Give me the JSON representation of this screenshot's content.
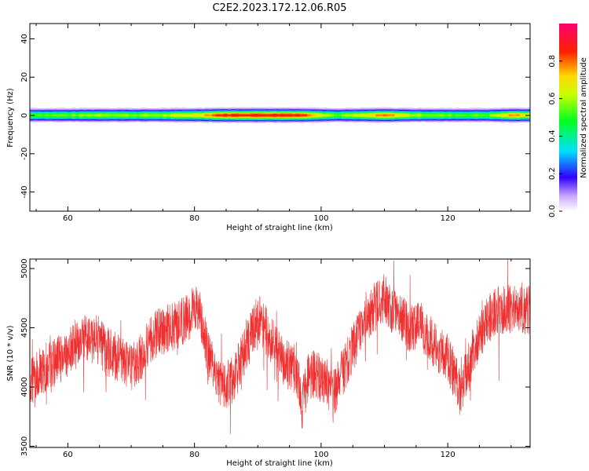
{
  "figure": {
    "title": "C2E2.2023.172.12.06.R05"
  },
  "chart_data": [
    {
      "type": "heatmap",
      "title": "",
      "xlabel": "Height of straight line (km)",
      "ylabel": "Frequency (Hz)",
      "xlim": [
        54,
        133
      ],
      "ylim": [
        -50,
        48
      ],
      "xticks": [
        60,
        80,
        100,
        120
      ],
      "yticks": [
        -40,
        -20,
        0,
        20,
        40
      ],
      "colorbar": {
        "label": "Normalized spectral amplitude",
        "range": [
          0,
          1
        ],
        "ticks": [
          0.0,
          0.2,
          0.4,
          0.6,
          0.8
        ],
        "colors": [
          "#ffffff",
          "#8a5cff",
          "#0000ff",
          "#00ffff",
          "#00ff00",
          "#ffff00",
          "#ff0000",
          "#ff0080"
        ]
      },
      "band": {
        "center_hz": 0,
        "half_width_hz": 3,
        "profile": [
          {
            "x": 54,
            "peak": 0.55
          },
          {
            "x": 60,
            "peak": 0.55
          },
          {
            "x": 65,
            "peak": 0.62
          },
          {
            "x": 70,
            "peak": 0.58
          },
          {
            "x": 75,
            "peak": 0.6
          },
          {
            "x": 80,
            "peak": 0.7
          },
          {
            "x": 84,
            "peak": 0.88
          },
          {
            "x": 90,
            "peak": 0.9
          },
          {
            "x": 96,
            "peak": 0.9
          },
          {
            "x": 99,
            "peak": 0.75
          },
          {
            "x": 102,
            "peak": 0.55
          },
          {
            "x": 106,
            "peak": 0.65
          },
          {
            "x": 110,
            "peak": 0.8
          },
          {
            "x": 114,
            "peak": 0.62
          },
          {
            "x": 120,
            "peak": 0.55
          },
          {
            "x": 126,
            "peak": 0.55
          },
          {
            "x": 130,
            "peak": 0.78
          },
          {
            "x": 133,
            "peak": 0.7
          }
        ]
      }
    },
    {
      "type": "line",
      "title": "",
      "xlabel": "Height of straight line (km)",
      "ylabel": "SNR (10 * v/v)",
      "xlim": [
        54,
        133
      ],
      "ylim": [
        3490,
        5080
      ],
      "xticks": [
        60,
        80,
        100,
        120
      ],
      "yticks": [
        3500,
        4000,
        4500,
        5000
      ],
      "line_color": "#f03030",
      "series": [
        {
          "x": [
            54,
            56,
            58,
            60,
            62,
            64,
            66,
            68,
            70,
            72,
            74,
            76,
            78,
            80,
            81,
            82,
            84,
            86,
            88,
            90,
            92,
            94,
            96,
            97,
            98,
            100,
            102,
            104,
            106,
            108,
            110,
            112,
            114,
            116,
            118,
            120,
            122,
            124,
            126,
            128,
            130,
            133
          ],
          "y": [
            4050,
            4150,
            4200,
            4300,
            4400,
            4450,
            4300,
            4250,
            4150,
            4300,
            4450,
            4500,
            4550,
            4650,
            4600,
            4300,
            4000,
            4050,
            4300,
            4600,
            4400,
            4200,
            4150,
            3850,
            4100,
            4100,
            3950,
            4200,
            4450,
            4650,
            4750,
            4600,
            4500,
            4500,
            4350,
            4250,
            3950,
            4300,
            4550,
            4650,
            4650,
            4650
          ]
        }
      ]
    }
  ]
}
